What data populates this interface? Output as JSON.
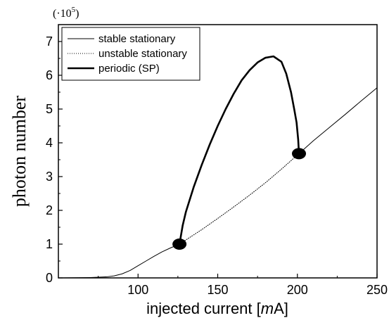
{
  "chart_data": {
    "type": "line",
    "title": "",
    "xlabel": "injected current [mA]",
    "xlabel_parts": {
      "before": "injected current [",
      "italic": "m",
      "after": "A]"
    },
    "ylabel": "photon number",
    "y_multiplier": {
      "prefix": "(·10",
      "exponent": "5",
      "suffix": ")"
    },
    "xlim": [
      50,
      250
    ],
    "ylim": [
      0,
      7.5
    ],
    "x_ticks": [
      100,
      150,
      200,
      250
    ],
    "y_ticks": [
      0,
      1,
      2,
      3,
      4,
      5,
      6,
      7
    ],
    "grid": false,
    "legend_position": "top-left",
    "series": [
      {
        "name": "stable stationary",
        "style": "solid-thin",
        "x": [
          50,
          70,
          80,
          85,
          90,
          95,
          100,
          105,
          110,
          115,
          120,
          126
        ],
        "y": [
          0,
          0.01,
          0.03,
          0.06,
          0.12,
          0.22,
          0.36,
          0.5,
          0.64,
          0.77,
          0.88,
          1.0
        ]
      },
      {
        "name": "unstable stationary",
        "style": "dotted",
        "x": [
          126,
          140,
          150,
          160,
          170,
          180,
          190,
          201
        ],
        "y": [
          1.0,
          1.43,
          1.76,
          2.1,
          2.45,
          2.82,
          3.22,
          3.68
        ]
      },
      {
        "name": "stable stationary",
        "style": "solid-thin",
        "x": [
          201,
          210,
          220,
          230,
          240,
          250
        ],
        "y": [
          3.68,
          4.06,
          4.45,
          4.84,
          5.24,
          5.63
        ]
      },
      {
        "name": "periodic (SP)",
        "style": "solid-thick",
        "x": [
          126,
          128,
          130,
          135,
          140,
          145,
          150,
          155,
          160,
          165,
          170,
          175,
          180,
          185,
          190,
          193,
          196,
          198,
          199.5,
          200.5,
          201
        ],
        "y": [
          1.0,
          1.55,
          1.95,
          2.7,
          3.35,
          3.95,
          4.5,
          5.0,
          5.45,
          5.85,
          6.15,
          6.38,
          6.52,
          6.56,
          6.4,
          6.05,
          5.5,
          5.0,
          4.6,
          4.1,
          3.68
        ]
      }
    ],
    "markers": [
      {
        "x": 126,
        "y": 1.0
      },
      {
        "x": 201,
        "y": 3.68
      }
    ],
    "legend": [
      {
        "label": "stable stationary",
        "style": "solid-thin"
      },
      {
        "label": "unstable stationary",
        "style": "dotted"
      },
      {
        "label": "periodic (SP)",
        "style": "solid-thick"
      }
    ]
  }
}
